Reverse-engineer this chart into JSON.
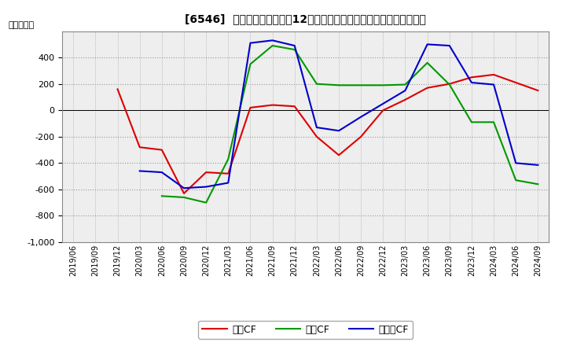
{
  "title": "[6546]  キャッシュフローの12か月移動合計の対前年同期増減額の推移",
  "ylabel": "（百万円）",
  "x_labels": [
    "2019/06",
    "2019/09",
    "2019/12",
    "2020/03",
    "2020/06",
    "2020/09",
    "2020/12",
    "2021/03",
    "2021/06",
    "2021/09",
    "2021/12",
    "2022/03",
    "2022/06",
    "2022/09",
    "2022/12",
    "2023/03",
    "2023/06",
    "2023/09",
    "2023/12",
    "2024/03",
    "2024/06",
    "2024/09"
  ],
  "operating_cf": [
    null,
    null,
    160,
    -280,
    -300,
    -630,
    -470,
    -480,
    20,
    40,
    30,
    -200,
    -340,
    -200,
    0,
    80,
    170,
    200,
    250,
    270,
    210,
    150
  ],
  "investing_cf": [
    null,
    null,
    null,
    null,
    -650,
    -660,
    -700,
    -370,
    350,
    490,
    460,
    200,
    190,
    190,
    190,
    195,
    360,
    195,
    -90,
    -90,
    -530,
    -560
  ],
  "free_cf": [
    null,
    null,
    null,
    -460,
    -470,
    -590,
    -580,
    -550,
    510,
    530,
    490,
    -130,
    -155,
    -50,
    50,
    150,
    500,
    490,
    210,
    195,
    -400,
    -415
  ],
  "ylim": [
    -1000,
    600
  ],
  "yticks": [
    -1000,
    -800,
    -600,
    -400,
    -200,
    0,
    200,
    400
  ],
  "background_color": "#eeeeee",
  "grid_color": "#999999",
  "operating_color": "#dd0000",
  "investing_color": "#009900",
  "free_color": "#0000cc",
  "legend_labels": [
    "営業CF",
    "投資CF",
    "フリーCF"
  ]
}
